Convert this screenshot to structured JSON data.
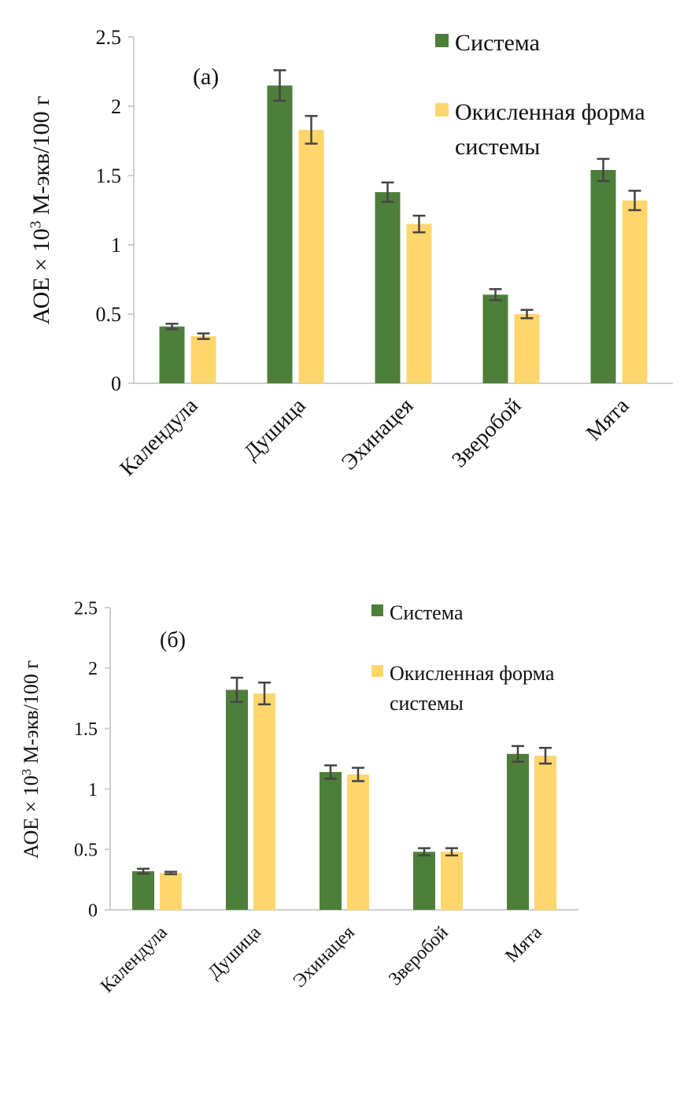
{
  "chart_data": [
    {
      "type": "bar",
      "panel_label": "(а)",
      "ylabel": "АОЕ × 10³ М-экв/100 г",
      "ylabel_main": "АОЕ × 10",
      "ylabel_sup": "3",
      "ylabel_tail": " М-экв/100 г",
      "ylim": [
        0,
        2.5
      ],
      "yticks": [
        "0",
        "0.5",
        "1",
        "1.5",
        "2",
        "2.5"
      ],
      "grid": false,
      "legend_position": "top-right",
      "categories": [
        "Календула",
        "Душица",
        "Эхинацея",
        "Зверобой",
        "Мята"
      ],
      "series": [
        {
          "name": "Система",
          "color": "#4e7f3a",
          "values": [
            0.41,
            2.15,
            1.38,
            0.64,
            1.54
          ],
          "errors": [
            0.02,
            0.11,
            0.07,
            0.04,
            0.08
          ]
        },
        {
          "name": "Окисленная форма системы",
          "name_line1": "Окисленная форма",
          "name_line2": "системы",
          "color": "#ffd66b",
          "values": [
            0.34,
            1.83,
            1.15,
            0.5,
            1.32
          ],
          "errors": [
            0.02,
            0.1,
            0.06,
            0.03,
            0.07
          ]
        }
      ]
    },
    {
      "type": "bar",
      "panel_label": "(б)",
      "ylabel": "АОЕ × 10³ М-экв/100 г",
      "ylabel_main": "АОЕ × 10",
      "ylabel_sup": "3",
      "ylabel_tail": " М-экв/100 г",
      "ylim": [
        0,
        2.5
      ],
      "yticks": [
        "0",
        "0.5",
        "1",
        "1.5",
        "2",
        "2.5"
      ],
      "grid": false,
      "legend_position": "top-right",
      "categories": [
        "Календула",
        "Душица",
        "Эхинацея",
        "Зверобой",
        "Мята"
      ],
      "series": [
        {
          "name": "Система",
          "color": "#4e7f3a",
          "values": [
            0.32,
            1.82,
            1.14,
            0.48,
            1.29
          ],
          "errors": [
            0.02,
            0.1,
            0.055,
            0.03,
            0.065
          ]
        },
        {
          "name": "Окисленная форма системы",
          "name_line1": "Окисленная форма",
          "name_line2": "системы",
          "color": "#ffd66b",
          "values": [
            0.305,
            1.79,
            1.12,
            0.48,
            1.275
          ],
          "errors": [
            0.01,
            0.09,
            0.055,
            0.03,
            0.065
          ]
        }
      ]
    }
  ]
}
